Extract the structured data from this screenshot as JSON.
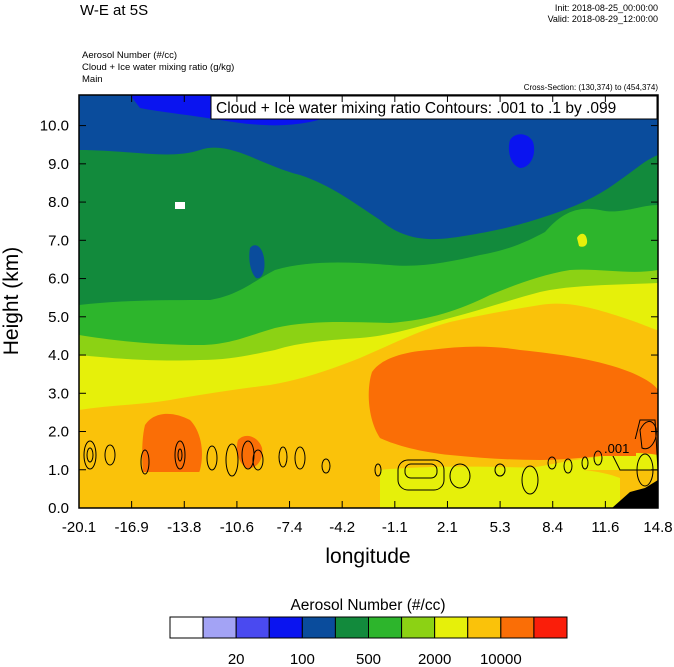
{
  "header": {
    "title": "W-E at 5S",
    "init": "Init: 2018-08-25_00:00:00",
    "valid": "Valid: 2018-08-29_12:00:00",
    "field1": "Aerosol Number   (#/cc)",
    "field2": "Cloud + Ice water mixing ratio   (g/kg)",
    "field3": "Main",
    "cross_section": "Cross-Section: (130,374) to (454,374)"
  },
  "chart_data": {
    "type": "heatmap",
    "title": "W-E at 5S",
    "xlabel": "longitude",
    "ylabel": "Height (km)",
    "xlim": [
      -20.1,
      14.8
    ],
    "ylim": [
      0.0,
      10.8
    ],
    "x_ticks": [
      "-20.1",
      "-16.9",
      "-13.8",
      "-10.6",
      "-7.4",
      "-4.2",
      "-1.1",
      "2.1",
      "5.3",
      "8.4",
      "11.6",
      "14.8"
    ],
    "y_ticks": [
      "0.0",
      "1.0",
      "2.0",
      "3.0",
      "4.0",
      "5.0",
      "6.0",
      "7.0",
      "8.0",
      "9.0",
      "10.0"
    ],
    "contour_label": "Cloud + Ice water mixing ratio Contours: .001 to .1 by .099",
    "contour_value_label": ".001",
    "colorbar": {
      "title": "Aerosol Number  (#/cc)",
      "colors": [
        "#ffffff",
        "#a3a3f5",
        "#4a4af0",
        "#0a14f0",
        "#0a4c9c",
        "#128a3c",
        "#2db52c",
        "#8cd214",
        "#e6f00a",
        "#fac20a",
        "#fa6e06",
        "#fa1e0a"
      ],
      "tick_labels": [
        "20",
        "100",
        "500",
        "2000",
        "10000"
      ]
    },
    "height_bands_km": [
      {
        "level": "~20000 #/cc",
        "color": "#fa6e06",
        "from_km": 2.0,
        "to_km": 3.5
      },
      {
        "level": "~5000 #/cc",
        "color": "#fac20a",
        "from_km": 0.0,
        "to_km": 4.8
      },
      {
        "level": "~2000 #/cc",
        "color": "#e6f00a",
        "from_km": 1.5,
        "to_km": 4.3
      },
      {
        "level": "~1000 #/cc",
        "color": "#8cd214",
        "from_km": 3.5,
        "to_km": 5.2
      },
      {
        "level": "~500 #/cc",
        "color": "#2db52c",
        "from_km": 4.2,
        "to_km": 6.4
      },
      {
        "level": "~200 #/cc",
        "color": "#128a3c",
        "from_km": 5.0,
        "to_km": 9.2
      },
      {
        "level": "~100 #/cc",
        "color": "#0a4c9c",
        "from_km": 7.0,
        "to_km": 10.8
      }
    ]
  }
}
